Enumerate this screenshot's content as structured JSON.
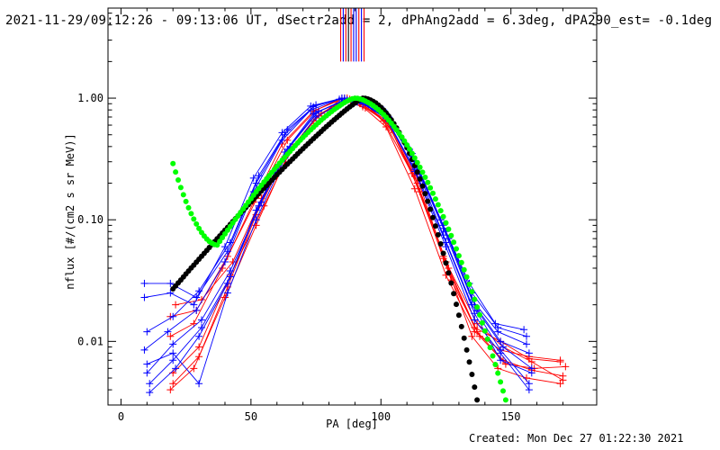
{
  "title": "2021-11-29/09:12:26 - 09:13:06 UT, dSectr2add = 2, dPhAng2add = 6.3deg, dPA290_est= -0.1deg",
  "footer": "Created: Mon Dec 27 01:22:30 2021",
  "chart_data": {
    "type": "line",
    "xlabel": "PA [deg]",
    "ylabel": "nflux [#/(cm2 s sr MeV)]",
    "xlim": [
      -5,
      183
    ],
    "ylim": [
      0.003,
      5.5
    ],
    "yscale": "log",
    "xticks": [
      0,
      50,
      100,
      150
    ],
    "xtick_labels": [
      "0",
      "50",
      "100",
      "150"
    ],
    "yticks": [
      0.01,
      0.1,
      1
    ],
    "ytick_labels": [
      "0.01",
      "0.10",
      "1.00"
    ],
    "colors": {
      "red": "#ff0000",
      "blue": "#0000ff",
      "black": "#000000",
      "green": "#00ff00"
    },
    "vertical_markers": {
      "y_range": [
        2.0,
        5.5
      ],
      "x": [
        84.5,
        85.5,
        86.5,
        87.5,
        88.5,
        89.5,
        90.5,
        91.5,
        92.5,
        93.5
      ],
      "colors": [
        "red",
        "blue",
        "red",
        "black",
        "red",
        "blue",
        "blue",
        "red",
        "blue",
        "red"
      ]
    },
    "series": [
      {
        "color": "red",
        "marker": "plus",
        "x": [
          19,
          28,
          40,
          52,
          63,
          74,
          85,
          92,
          101,
          112,
          124,
          135,
          145,
          156,
          169
        ],
        "y": [
          0.004,
          0.006,
          0.023,
          0.09,
          0.3,
          0.65,
          1.0,
          0.92,
          0.65,
          0.24,
          0.05,
          0.011,
          0.006,
          0.005,
          0.0045
        ]
      },
      {
        "color": "red",
        "marker": "plus",
        "x": [
          20,
          30,
          42,
          55,
          66,
          77,
          87,
          94,
          103,
          114,
          126,
          137,
          147,
          158,
          170
        ],
        "y": [
          0.0055,
          0.009,
          0.035,
          0.13,
          0.4,
          0.75,
          1.0,
          0.9,
          0.6,
          0.2,
          0.04,
          0.012,
          0.007,
          0.0058,
          0.0052
        ]
      },
      {
        "color": "red",
        "marker": "plus",
        "x": [
          19,
          29,
          41,
          53,
          64,
          75,
          86,
          93,
          102,
          113,
          125,
          136,
          146,
          157,
          169
        ],
        "y": [
          0.016,
          0.018,
          0.05,
          0.16,
          0.45,
          0.8,
          1.0,
          0.85,
          0.58,
          0.18,
          0.035,
          0.012,
          0.0085,
          0.0075,
          0.007
        ]
      },
      {
        "color": "red",
        "marker": "plus",
        "x": [
          21,
          31,
          43,
          54,
          65,
          76,
          88,
          95,
          104,
          115,
          127,
          138,
          148,
          159,
          171
        ],
        "y": [
          0.02,
          0.022,
          0.045,
          0.15,
          0.38,
          0.72,
          0.98,
          0.86,
          0.55,
          0.17,
          0.032,
          0.011,
          0.0065,
          0.006,
          0.0062
        ]
      },
      {
        "color": "red",
        "marker": "plus",
        "x": [
          20,
          30,
          41,
          52,
          63,
          75,
          86,
          94,
          103,
          114,
          125,
          137,
          147,
          158,
          170
        ],
        "y": [
          0.0045,
          0.0075,
          0.028,
          0.11,
          0.33,
          0.7,
          0.96,
          0.83,
          0.62,
          0.22,
          0.045,
          0.014,
          0.009,
          0.0068,
          0.0048
        ]
      },
      {
        "color": "red",
        "marker": "plus",
        "x": [
          19,
          28,
          39,
          51,
          62,
          74,
          85,
          93,
          102,
          113,
          124,
          136,
          146,
          157,
          169
        ],
        "y": [
          0.011,
          0.014,
          0.04,
          0.14,
          0.42,
          0.78,
          1.0,
          0.88,
          0.66,
          0.23,
          0.048,
          0.013,
          0.01,
          0.0072,
          0.0068
        ]
      },
      {
        "color": "blue",
        "marker": "plus",
        "x": [
          9,
          19,
          29,
          41,
          52,
          63,
          74,
          85,
          92,
          101,
          112,
          124,
          135,
          145,
          156
        ],
        "y": [
          0.03,
          0.03,
          0.023,
          0.055,
          0.2,
          0.5,
          0.85,
          1.0,
          0.95,
          0.8,
          0.35,
          0.09,
          0.025,
          0.013,
          0.011
        ]
      },
      {
        "color": "blue",
        "marker": "plus",
        "x": [
          10,
          20,
          30,
          42,
          53,
          64,
          75,
          86,
          93,
          102,
          113,
          125,
          136,
          146,
          157
        ],
        "y": [
          0.012,
          0.016,
          0.026,
          0.065,
          0.23,
          0.55,
          0.88,
          1.0,
          0.94,
          0.75,
          0.3,
          0.08,
          0.02,
          0.01,
          0.008
        ]
      },
      {
        "color": "blue",
        "marker": "plus",
        "x": [
          9,
          18,
          29,
          40,
          51,
          62,
          73,
          84,
          91,
          100,
          111,
          123,
          134,
          144,
          155
        ],
        "y": [
          0.0085,
          0.012,
          0.018,
          0.045,
          0.17,
          0.45,
          0.8,
          0.98,
          0.93,
          0.8,
          0.38,
          0.1,
          0.03,
          0.014,
          0.0125
        ]
      },
      {
        "color": "blue",
        "marker": "plus",
        "x": [
          10,
          20,
          31,
          42,
          54,
          65,
          76,
          87,
          94,
          103,
          114,
          126,
          137,
          147,
          158
        ],
        "y": [
          0.0055,
          0.0095,
          0.015,
          0.038,
          0.14,
          0.4,
          0.78,
          0.97,
          0.92,
          0.7,
          0.27,
          0.07,
          0.018,
          0.009,
          0.006
        ]
      },
      {
        "color": "blue",
        "marker": "plus",
        "x": [
          11,
          21,
          30,
          41,
          52,
          63,
          74,
          86,
          93,
          102,
          113,
          125,
          136,
          146,
          157
        ],
        "y": [
          0.0038,
          0.006,
          0.011,
          0.03,
          0.12,
          0.36,
          0.74,
          0.96,
          0.9,
          0.68,
          0.25,
          0.06,
          0.015,
          0.008,
          0.004
        ]
      },
      {
        "color": "blue",
        "marker": "plus",
        "x": [
          9,
          19,
          28,
          40,
          51,
          62,
          73,
          85,
          92,
          101,
          112,
          124,
          135,
          145,
          156
        ],
        "y": [
          0.023,
          0.025,
          0.02,
          0.06,
          0.22,
          0.52,
          0.86,
          1.0,
          0.96,
          0.78,
          0.33,
          0.085,
          0.022,
          0.012,
          0.0095
        ]
      },
      {
        "color": "blue",
        "marker": "plus",
        "x": [
          10,
          20,
          30,
          41,
          52,
          63,
          75,
          86,
          93,
          102,
          113,
          124,
          135,
          146,
          157
        ],
        "y": [
          0.0065,
          0.008,
          0.0045,
          0.025,
          0.1,
          0.32,
          0.7,
          0.95,
          0.9,
          0.72,
          0.29,
          0.075,
          0.02,
          0.0085,
          0.0045
        ]
      },
      {
        "color": "blue",
        "marker": "plus",
        "x": [
          11,
          20,
          31,
          42,
          53,
          64,
          75,
          86,
          93,
          102,
          113,
          125,
          136,
          146,
          158
        ],
        "y": [
          0.0045,
          0.007,
          0.013,
          0.034,
          0.13,
          0.38,
          0.76,
          0.97,
          0.91,
          0.69,
          0.26,
          0.065,
          0.017,
          0.007,
          0.0055
        ]
      }
    ],
    "fits": [
      {
        "color": "black",
        "marker": "dot",
        "x_start": 20,
        "x_end": 137,
        "step": 1,
        "peak_x": 93,
        "peak_y": 1.0,
        "left_y": 0.027,
        "right_y": 0.0033
      },
      {
        "color": "green",
        "marker": "dot",
        "x_start": 20,
        "x_end": 148,
        "step": 1,
        "peak_x": 90,
        "peak_y": 1.0,
        "start_y": 0.29,
        "min_x": 37,
        "min_y": 0.062,
        "right_y": 0.0033
      }
    ]
  }
}
